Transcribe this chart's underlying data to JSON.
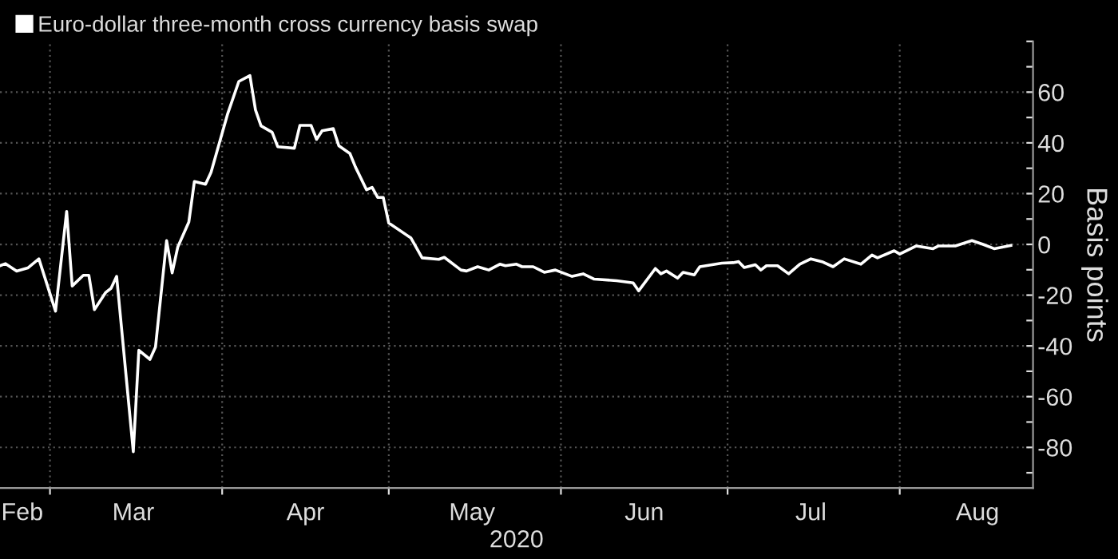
{
  "chart_data": {
    "type": "line",
    "xlabel": "2020",
    "ylabel": "Basis points",
    "legend": "top left",
    "grid": true,
    "marker": "none",
    "line_style": "solid",
    "xlim": [
      "2020-02-21",
      "2020-08-25"
    ],
    "xticks": [
      {
        "value": "2020-02-25",
        "label": "Feb"
      },
      {
        "value": "2020-03-01",
        "label": null
      },
      {
        "value": "2020-03-16",
        "label": "Mar"
      },
      {
        "value": "2020-04-01",
        "label": null
      },
      {
        "value": "2020-04-16",
        "label": "Apr"
      },
      {
        "value": "2020-05-01",
        "label": null
      },
      {
        "value": "2020-05-16",
        "label": "May"
      },
      {
        "value": "2020-06-01",
        "label": null
      },
      {
        "value": "2020-06-16",
        "label": "Jun"
      },
      {
        "value": "2020-07-01",
        "label": null
      },
      {
        "value": "2020-07-16",
        "label": "Jul"
      },
      {
        "value": "2020-08-01",
        "label": null
      },
      {
        "value": "2020-08-15",
        "label": "Aug"
      }
    ],
    "ylim": [
      -96,
      80
    ],
    "yticks": [
      {
        "value": -90,
        "label": null
      },
      -80,
      {
        "value": -70,
        "label": null
      },
      -60,
      {
        "value": -50,
        "label": null
      },
      -40,
      {
        "value": -30,
        "label": null
      },
      -20,
      {
        "value": -10,
        "label": null
      },
      0,
      {
        "value": 10,
        "label": null
      },
      20,
      {
        "value": 30,
        "label": null
      },
      40,
      {
        "value": 50,
        "label": null
      },
      60,
      {
        "value": 70,
        "label": null
      },
      {
        "value": 80,
        "label": null
      }
    ],
    "series": [
      {
        "name": "Euro-dollar three-month cross currency basis swap",
        "color": "#ffffff",
        "x": [
          "2020-02-21",
          "2020-02-22",
          "2020-02-24",
          "2020-02-26",
          "2020-02-28",
          "2020-03-02",
          "2020-03-04",
          "2020-03-05",
          "2020-03-07",
          "2020-03-08",
          "2020-03-09",
          "2020-03-11",
          "2020-03-12",
          "2020-03-13",
          "2020-03-16",
          "2020-03-17",
          "2020-03-19",
          "2020-03-20",
          "2020-03-22",
          "2020-03-23",
          "2020-03-24",
          "2020-03-26",
          "2020-03-27",
          "2020-03-29",
          "2020-03-30",
          "2020-04-02",
          "2020-04-04",
          "2020-04-06",
          "2020-04-07",
          "2020-04-08",
          "2020-04-10",
          "2020-04-11",
          "2020-04-14",
          "2020-04-15",
          "2020-04-17",
          "2020-04-18",
          "2020-04-19",
          "2020-04-21",
          "2020-04-22",
          "2020-04-24",
          "2020-04-25",
          "2020-04-27",
          "2020-04-28",
          "2020-04-29",
          "2020-04-30",
          "2020-05-01",
          "2020-05-05",
          "2020-05-07",
          "2020-05-10",
          "2020-05-11",
          "2020-05-14",
          "2020-05-15",
          "2020-05-17",
          "2020-05-19",
          "2020-05-21",
          "2020-05-22",
          "2020-05-24",
          "2020-05-25",
          "2020-05-27",
          "2020-05-29",
          "2020-05-31",
          "2020-06-03",
          "2020-06-05",
          "2020-06-07",
          "2020-06-11",
          "2020-06-14",
          "2020-06-15",
          "2020-06-18",
          "2020-06-19",
          "2020-06-20",
          "2020-06-22",
          "2020-06-23",
          "2020-06-25",
          "2020-06-26",
          "2020-06-30",
          "2020-07-02",
          "2020-07-03",
          "2020-07-04",
          "2020-07-06",
          "2020-07-07",
          "2020-07-08",
          "2020-07-10",
          "2020-07-12",
          "2020-07-14",
          "2020-07-16",
          "2020-07-18",
          "2020-07-20",
          "2020-07-22",
          "2020-07-25",
          "2020-07-27",
          "2020-07-28",
          "2020-07-31",
          "2020-08-01",
          "2020-08-04",
          "2020-08-07",
          "2020-08-08",
          "2020-08-11",
          "2020-08-14",
          "2020-08-16",
          "2020-08-18",
          "2020-08-21"
        ],
        "values": [
          -8.4,
          -7.6,
          -10.5,
          -9.3,
          -5.7,
          -26.3,
          13,
          -16.4,
          -12.2,
          -12.2,
          -25.7,
          -19,
          -17.3,
          -12.6,
          -81.7,
          -41.7,
          -45.3,
          -40.4,
          1.5,
          -11.2,
          -1.1,
          8.8,
          24.8,
          23.7,
          28.4,
          51.5,
          64.2,
          66.5,
          53,
          46.7,
          44.2,
          38.5,
          37.9,
          46.9,
          46.9,
          41.4,
          44.8,
          45.6,
          38.9,
          35.8,
          30.5,
          21.5,
          22.5,
          18.5,
          18.5,
          8.4,
          2.5,
          -5.3,
          -5.9,
          -5.1,
          -10.1,
          -10.5,
          -8.8,
          -10.1,
          -7.8,
          -8.4,
          -7.8,
          -8.8,
          -8.8,
          -11,
          -10.1,
          -12.6,
          -11.6,
          -13.7,
          -14.3,
          -15.2,
          -18.3,
          -9.5,
          -11.6,
          -10.5,
          -13.3,
          -11,
          -12,
          -8.8,
          -7.4,
          -7.2,
          -6.8,
          -9.1,
          -8,
          -10.1,
          -8.4,
          -8.4,
          -11.6,
          -7.8,
          -5.7,
          -6.8,
          -8.8,
          -5.7,
          -7.8,
          -4.2,
          -5.3,
          -2.5,
          -3.8,
          -0.6,
          -1.7,
          -0.6,
          -0.6,
          1.5,
          0,
          -1.7,
          -0.4
        ]
      }
    ]
  }
}
